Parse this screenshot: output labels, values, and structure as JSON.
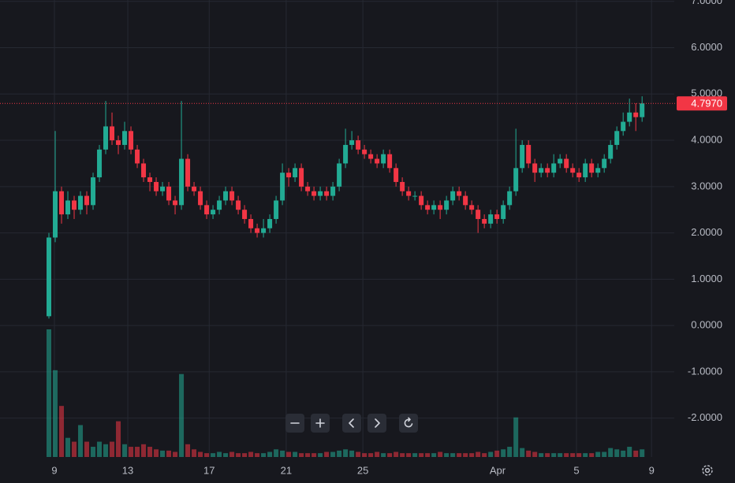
{
  "chart_data": {
    "type": "candlestick",
    "xticks": [
      {
        "value": 0.875,
        "label": "9"
      },
      {
        "value": 12.5,
        "label": "13"
      },
      {
        "value": 25.4,
        "label": "17"
      },
      {
        "value": 37.6,
        "label": "21"
      },
      {
        "value": 49.75,
        "label": "25"
      },
      {
        "value": 71.1,
        "label": "Apr"
      },
      {
        "value": 83.6,
        "label": "5"
      },
      {
        "value": 95.5,
        "label": "9"
      }
    ],
    "xlim": [
      -7.75,
      99.1
    ],
    "ylim": [
      -2.84,
      7.03
    ],
    "yticks": [
      {
        "value": 7,
        "label": "7.0000"
      },
      {
        "value": 6,
        "label": "6.0000"
      },
      {
        "value": 5,
        "label": "5.0000"
      },
      {
        "value": 4,
        "label": "4.0000"
      },
      {
        "value": 3,
        "label": "3.0000"
      },
      {
        "value": 2,
        "label": "2.0000"
      },
      {
        "value": 1,
        "label": "1.0000"
      },
      {
        "value": 0,
        "label": "0.0000"
      },
      {
        "value": -1,
        "label": "-1.0000"
      },
      {
        "value": -2,
        "label": "-2.0000"
      }
    ],
    "grid": true,
    "up_color": "#22ab94",
    "down_color": "#f23645",
    "last_price": {
      "value": 4.797,
      "label": "4.7970"
    },
    "open": [
      0.2,
      1.9,
      2.9,
      2.4,
      2.7,
      2.5,
      2.8,
      2.6,
      3.2,
      3.8,
      4.3,
      4.0,
      3.9,
      4.2,
      3.8,
      3.5,
      3.2,
      3.1,
      2.9,
      3.0,
      2.7,
      2.6,
      3.6,
      3.0,
      2.9,
      2.6,
      2.4,
      2.5,
      2.7,
      2.9,
      2.7,
      2.5,
      2.3,
      2.1,
      2.0,
      2.1,
      2.3,
      2.7,
      3.3,
      3.2,
      3.4,
      3.0,
      2.9,
      2.8,
      2.9,
      2.8,
      3.0,
      3.5,
      3.9,
      4.0,
      3.8,
      3.7,
      3.6,
      3.5,
      3.7,
      3.4,
      3.1,
      2.9,
      2.8,
      2.8,
      2.6,
      2.5,
      2.6,
      2.5,
      2.7,
      2.9,
      2.8,
      2.6,
      2.5,
      2.3,
      2.2,
      2.4,
      2.3,
      2.6,
      2.9,
      3.4,
      3.9,
      3.5,
      3.3,
      3.4,
      3.3,
      3.5,
      3.6,
      3.4,
      3.3,
      3.2,
      3.5,
      3.3,
      3.4,
      3.6,
      3.9,
      4.2,
      4.4,
      4.6,
      4.5
    ],
    "high": [
      2.0,
      4.2,
      3.0,
      2.9,
      2.8,
      2.9,
      2.9,
      3.3,
      3.9,
      4.85,
      4.6,
      4.1,
      4.4,
      4.3,
      3.9,
      3.6,
      3.3,
      3.2,
      3.1,
      3.1,
      2.8,
      4.85,
      3.7,
      3.1,
      3.0,
      2.7,
      2.6,
      2.8,
      3.0,
      3.0,
      2.8,
      2.6,
      2.4,
      2.2,
      2.3,
      2.4,
      2.8,
      3.5,
      3.4,
      3.5,
      3.5,
      3.1,
      3.0,
      3.0,
      3.0,
      3.1,
      3.6,
      4.25,
      4.2,
      4.1,
      3.9,
      3.8,
      3.7,
      3.8,
      3.8,
      3.5,
      3.2,
      3.0,
      2.9,
      2.9,
      2.7,
      2.7,
      2.7,
      2.8,
      3.0,
      3.0,
      2.9,
      2.7,
      2.6,
      2.4,
      2.5,
      2.5,
      2.7,
      3.0,
      4.25,
      4.0,
      4.0,
      3.6,
      3.5,
      3.5,
      3.7,
      3.7,
      3.7,
      3.5,
      3.4,
      3.6,
      3.6,
      3.5,
      3.7,
      4.0,
      4.3,
      4.6,
      4.9,
      4.8,
      4.95
    ],
    "low": [
      0.15,
      1.8,
      2.2,
      2.3,
      2.3,
      2.4,
      2.4,
      2.5,
      3.1,
      3.7,
      3.9,
      3.7,
      3.8,
      3.7,
      3.4,
      3.1,
      2.9,
      2.8,
      2.8,
      2.6,
      2.4,
      2.5,
      2.9,
      2.8,
      2.5,
      2.3,
      2.3,
      2.4,
      2.6,
      2.6,
      2.4,
      2.2,
      2.0,
      1.9,
      1.9,
      2.0,
      2.2,
      2.6,
      3.0,
      3.1,
      2.9,
      2.8,
      2.7,
      2.7,
      2.7,
      2.7,
      2.9,
      3.4,
      3.8,
      3.7,
      3.6,
      3.5,
      3.4,
      3.4,
      3.3,
      3.0,
      2.8,
      2.7,
      2.7,
      2.5,
      2.4,
      2.4,
      2.3,
      2.4,
      2.6,
      2.7,
      2.5,
      2.4,
      2.0,
      2.1,
      2.1,
      2.2,
      2.2,
      2.5,
      2.8,
      3.3,
      3.4,
      3.1,
      3.2,
      3.2,
      3.2,
      3.4,
      3.3,
      3.2,
      3.1,
      3.1,
      3.2,
      3.2,
      3.3,
      3.5,
      3.8,
      4.1,
      4.3,
      4.2,
      4.4
    ],
    "close": [
      1.9,
      2.9,
      2.4,
      2.7,
      2.5,
      2.8,
      2.6,
      3.2,
      3.8,
      4.3,
      4.0,
      3.9,
      4.2,
      3.8,
      3.5,
      3.2,
      3.1,
      2.9,
      3.0,
      2.7,
      2.6,
      3.6,
      3.0,
      2.9,
      2.6,
      2.4,
      2.5,
      2.7,
      2.9,
      2.7,
      2.5,
      2.3,
      2.1,
      2.0,
      2.1,
      2.3,
      2.7,
      3.3,
      3.2,
      3.4,
      3.0,
      2.9,
      2.8,
      2.9,
      2.8,
      3.0,
      3.5,
      3.9,
      4.0,
      3.8,
      3.7,
      3.6,
      3.5,
      3.7,
      3.4,
      3.1,
      2.9,
      2.8,
      2.8,
      2.6,
      2.5,
      2.6,
      2.5,
      2.7,
      2.9,
      2.8,
      2.6,
      2.5,
      2.3,
      2.2,
      2.4,
      2.3,
      2.6,
      2.9,
      3.4,
      3.9,
      3.5,
      3.3,
      3.4,
      3.3,
      3.5,
      3.6,
      3.4,
      3.3,
      3.2,
      3.5,
      3.3,
      3.4,
      3.6,
      3.9,
      4.2,
      4.4,
      4.6,
      4.5,
      4.797
    ],
    "volume": [
      100,
      68,
      40,
      15,
      12,
      25,
      12,
      8,
      12,
      10,
      12,
      28,
      10,
      8,
      8,
      10,
      8,
      6,
      5,
      5,
      4,
      65,
      10,
      6,
      4,
      3,
      3,
      4,
      3,
      4,
      3,
      3,
      4,
      3,
      3,
      4,
      6,
      5,
      4,
      4,
      3,
      3,
      3,
      3,
      4,
      4,
      5,
      6,
      5,
      4,
      3,
      3,
      4,
      3,
      3,
      4,
      3,
      3,
      3,
      3,
      3,
      3,
      4,
      3,
      3,
      3,
      3,
      3,
      4,
      3,
      4,
      5,
      6,
      8,
      31,
      7,
      5,
      4,
      3,
      3,
      3,
      3,
      3,
      3,
      3,
      3,
      3,
      4,
      4,
      7,
      6,
      5,
      8,
      5,
      6
    ]
  }
}
